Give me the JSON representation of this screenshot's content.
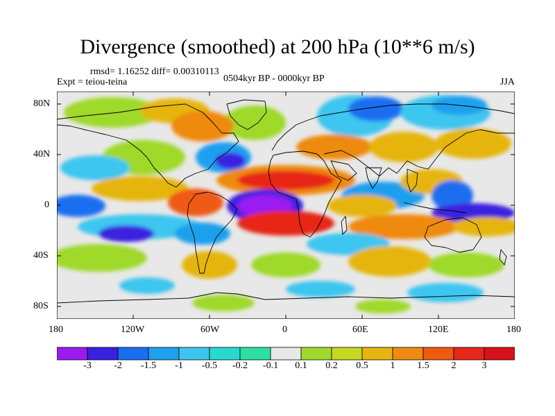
{
  "title": "Divergence (smoothed) at 200 hPa (10**6 m/s)",
  "stats": "rmsd= 1.16252 diff= 0.00310113",
  "experiment": "Expt = teiou-teina",
  "period": "0504kyr BP - 0000kyr BP",
  "season": "JJA",
  "lat_labels": [
    "80N",
    "40N",
    "0",
    "40S",
    "80S"
  ],
  "lon_labels": [
    "180",
    "120W",
    "60W",
    "0",
    "60E",
    "120E",
    "180"
  ],
  "colorbar_labels": [
    "-3",
    "-2",
    "-1.5",
    "-1",
    "-0.5",
    "-0.2",
    "-0.1",
    "0.1",
    "0.2",
    "0.5",
    "1",
    "1.5",
    "2",
    "3"
  ],
  "colorbar_colors": [
    "#9a1bf0",
    "#3a20e0",
    "#1a6ef0",
    "#1ea0ee",
    "#3cc6ef",
    "#27d9cf",
    "#2de0a0",
    "#e8e8e8",
    "#9fd92c",
    "#c6d920",
    "#e6b510",
    "#ee8a10",
    "#ef5a12",
    "#e72818",
    "#d8121a"
  ],
  "map_colors": {
    "land_outline": "#000000",
    "frame": "#000000"
  }
}
